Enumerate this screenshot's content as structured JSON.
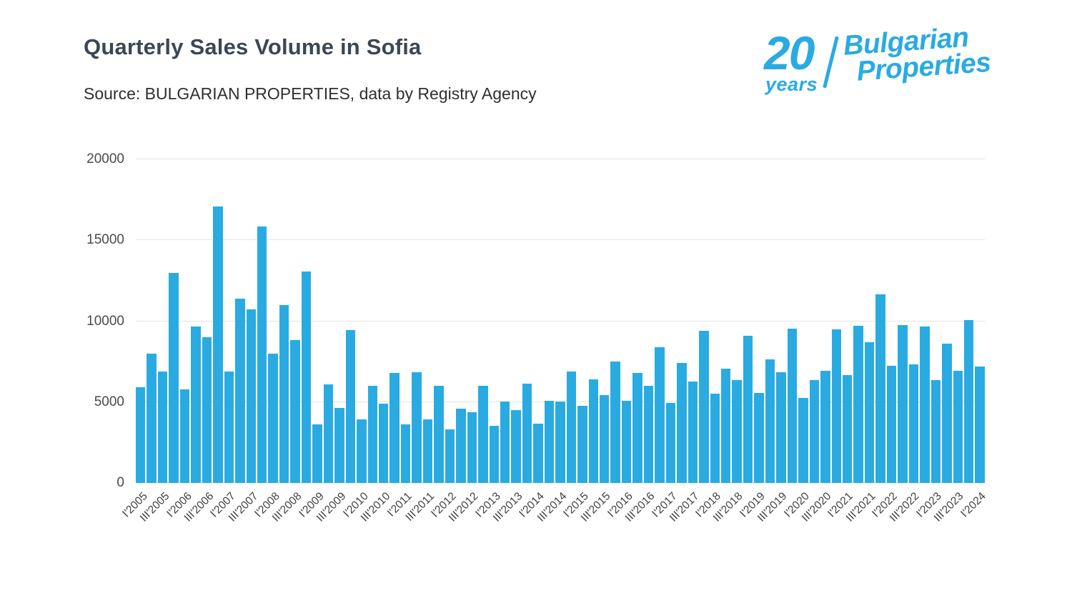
{
  "header": {
    "title": "Quarterly Sales Volume in Sofia",
    "source": "Source: BULGARIAN PROPERTIES, data by Registry Agency"
  },
  "logo": {
    "number": "20",
    "years": "years",
    "line1": "Bulgarian",
    "line2": "Properties",
    "color": "#29ABE2"
  },
  "chart_data": {
    "type": "bar",
    "title": "Quarterly Sales Volume in Sofia",
    "xlabel": "",
    "ylabel": "",
    "grid": true,
    "legend": false,
    "bar_color": "#29ABE2",
    "ylim": [
      0,
      20000
    ],
    "yticks": [
      0,
      5000,
      10000,
      15000,
      20000
    ],
    "xtick_every": 2,
    "categories": [
      "I'2005",
      "II'2005",
      "III'2005",
      "IV'2005",
      "I'2006",
      "II'2006",
      "III'2006",
      "IV'2006",
      "I'2007",
      "II'2007",
      "III'2007",
      "IV'2007",
      "I'2008",
      "II'2008",
      "III'2008",
      "IV'2008",
      "I'2009",
      "II'2009",
      "III'2009",
      "IV'2009",
      "I'2010",
      "II'2010",
      "III'2010",
      "IV'2010",
      "I'2011",
      "II'2011",
      "III'2011",
      "IV'2011",
      "I'2012",
      "II'2012",
      "III'2012",
      "IV'2012",
      "I'2013",
      "II'2013",
      "III'2013",
      "IV'2013",
      "I'2014",
      "II'2014",
      "III'2014",
      "IV'2014",
      "I'2015",
      "II'2015",
      "III'2015",
      "IV'2015",
      "I'2016",
      "II'2016",
      "III'2016",
      "IV'2016",
      "I'2017",
      "II'2017",
      "III'2017",
      "IV'2017",
      "I'2018",
      "II'2018",
      "III'2018",
      "IV'2018",
      "I'2019",
      "II'2019",
      "III'2019",
      "IV'2019",
      "I'2020",
      "II'2020",
      "III'2020",
      "IV'2020",
      "I'2021",
      "II'2021",
      "III'2021",
      "IV'2021",
      "I'2022",
      "II'2022",
      "III'2022",
      "IV'2022",
      "I'2023",
      "II'2023",
      "III'2023",
      "IV'2023",
      "I'2024"
    ],
    "values": [
      5900,
      8000,
      6900,
      13000,
      5800,
      9650,
      9000,
      17100,
      6900,
      11400,
      10750,
      15850,
      8000,
      11000,
      8850,
      13050,
      3600,
      6100,
      4650,
      9450,
      3950,
      6000,
      4900,
      6800,
      3600,
      6850,
      3950,
      6000,
      3300,
      4600,
      4350,
      6000,
      3550,
      5050,
      4500,
      6150,
      3650,
      5100,
      5050,
      6900,
      4750,
      6400,
      5450,
      7500,
      5100,
      6800,
      6000,
      8400,
      4950,
      7400,
      6250,
      9400,
      5500,
      7050,
      6350,
      9100,
      5550,
      7650,
      6850,
      9550,
      5250,
      6350,
      6950,
      9500,
      6650,
      9700,
      8700,
      11650,
      7250,
      9750,
      7350,
      9650,
      6350,
      8600,
      6950,
      10050,
      7200
    ]
  }
}
